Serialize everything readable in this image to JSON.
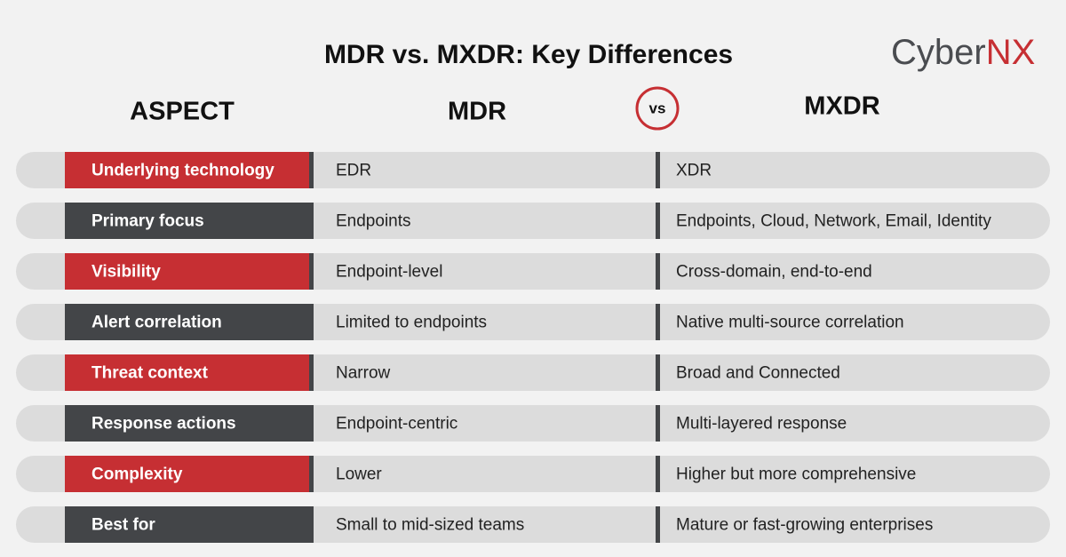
{
  "header": {
    "title": "MDR vs. MXDR: Key Differences",
    "logo": {
      "part1": "Cyber",
      "part2": "NX"
    }
  },
  "columns": {
    "aspect": "ASPECT",
    "left": "MDR",
    "vs": "vs",
    "right": "MXDR"
  },
  "table": {
    "rows": [
      [
        "Underlying technology",
        "EDR",
        "XDR"
      ],
      [
        "Primary focus",
        "Endpoints",
        "Endpoints, Cloud, Network, Email, Identity"
      ],
      [
        "Visibility",
        "Endpoint-level",
        "Cross-domain, end-to-end"
      ],
      [
        "Alert correlation",
        "Limited to endpoints",
        "Native multi-source correlation"
      ],
      [
        "Threat context",
        "Narrow",
        "Broad and Connected"
      ],
      [
        "Response actions",
        "Endpoint-centric",
        "Multi-layered response"
      ],
      [
        "Complexity",
        "Lower",
        "Higher but more comprehensive"
      ],
      [
        "Best for",
        "Small to mid-sized teams",
        "Mature or fast-growing enterprises"
      ]
    ]
  }
}
